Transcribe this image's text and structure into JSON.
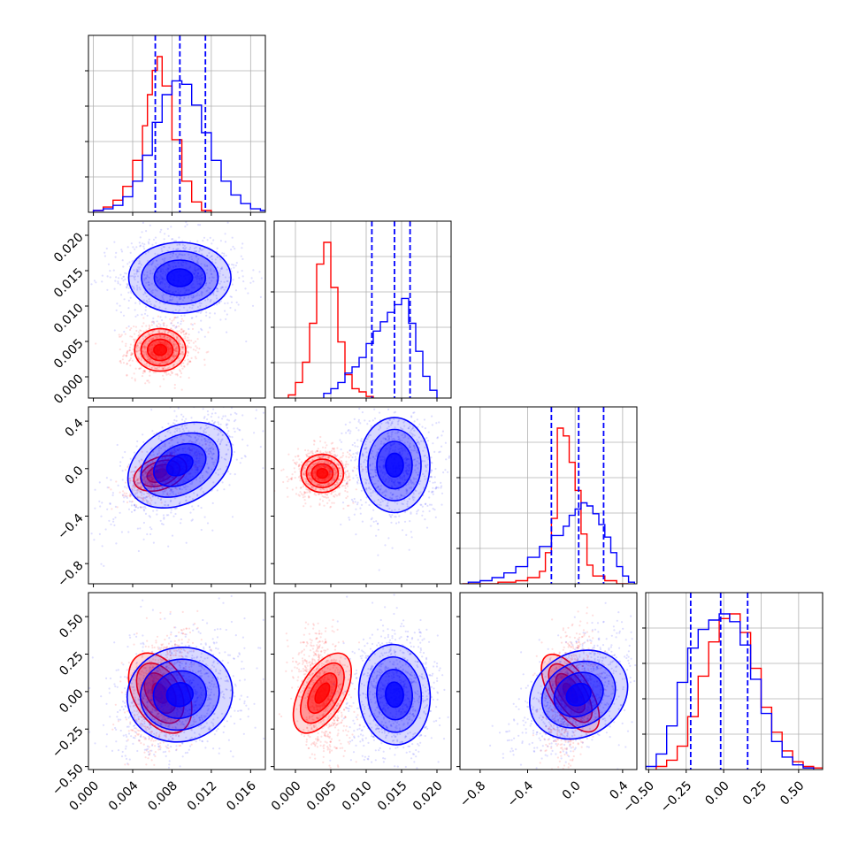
{
  "chart_data": {
    "type": "corner",
    "parameters": [
      {
        "id": "p0",
        "range": [
          -0.0005,
          0.0175
        ],
        "ticks": [
          0.0,
          0.004,
          0.008,
          0.012,
          0.016
        ],
        "tick_labels": [
          "0.000",
          "0.004",
          "0.008",
          "0.012",
          "0.016"
        ]
      },
      {
        "id": "p1",
        "range": [
          -0.003,
          0.022
        ],
        "ticks": [
          0.0,
          0.005,
          0.01,
          0.015,
          0.02
        ],
        "tick_labels": [
          "0.000",
          "0.005",
          "0.010",
          "0.015",
          "0.020"
        ]
      },
      {
        "id": "p2",
        "range": [
          -0.97,
          0.52
        ],
        "ticks": [
          -0.8,
          -0.4,
          0.0,
          0.4
        ],
        "tick_labels": [
          "−0.8",
          "−0.4",
          "0.0",
          "0.4"
        ]
      },
      {
        "id": "p3",
        "range": [
          -0.52,
          0.66
        ],
        "ticks": [
          -0.5,
          -0.25,
          0.0,
          0.25,
          0.5
        ],
        "tick_labels": [
          "−0.50",
          "−0.25",
          "0.00",
          "0.25",
          "0.50"
        ]
      }
    ],
    "grid": true,
    "series": [
      {
        "color": "#ff0000",
        "means": [
          0.0068,
          0.0038,
          -0.04,
          -0.01
        ],
        "sds": [
          0.0013,
          0.0015,
          0.08,
          0.16
        ],
        "correlations": [
          [
            0,
            2,
            0.5
          ],
          [
            0,
            3,
            0.3
          ],
          [
            1,
            3,
            -0.25
          ],
          [
            2,
            3,
            0.25
          ]
        ],
        "histograms": [
          {
            "bins": [
              [
                0.0,
                1
              ],
              [
                0.001,
                3
              ],
              [
                0.002,
                7
              ],
              [
                0.003,
                15
              ],
              [
                0.004,
                30
              ],
              [
                0.005,
                50
              ],
              [
                0.0055,
                68
              ],
              [
                0.006,
                82
              ],
              [
                0.0065,
                90
              ],
              [
                0.007,
                73
              ],
              [
                0.008,
                42
              ],
              [
                0.009,
                18
              ],
              [
                0.01,
                6
              ],
              [
                0.011,
                1
              ]
            ]
          },
          {
            "bins": [
              [
                -0.001,
                2
              ],
              [
                0.0,
                10
              ],
              [
                0.001,
                23
              ],
              [
                0.002,
                48
              ],
              [
                0.003,
                86
              ],
              [
                0.004,
                100
              ],
              [
                0.005,
                71
              ],
              [
                0.006,
                36
              ],
              [
                0.007,
                15
              ],
              [
                0.008,
                6
              ],
              [
                0.009,
                4
              ],
              [
                0.01,
                1
              ]
            ]
          },
          {
            "bins": [
              [
                -0.95,
                0
              ],
              [
                -0.65,
                1
              ],
              [
                -0.5,
                2
              ],
              [
                -0.4,
                4
              ],
              [
                -0.3,
                8
              ],
              [
                -0.25,
                20
              ],
              [
                -0.2,
                42
              ],
              [
                -0.15,
                100
              ],
              [
                -0.1,
                95
              ],
              [
                -0.05,
                78
              ],
              [
                0.0,
                60
              ],
              [
                0.05,
                32
              ],
              [
                0.1,
                12
              ],
              [
                0.15,
                5
              ],
              [
                0.25,
                2
              ],
              [
                0.35,
                0
              ]
            ]
          },
          {
            "bins": [
              [
                -0.45,
                2
              ],
              [
                -0.38,
                6
              ],
              [
                -0.31,
                15
              ],
              [
                -0.24,
                34
              ],
              [
                -0.17,
                60
              ],
              [
                -0.1,
                82
              ],
              [
                -0.03,
                97
              ],
              [
                0.04,
                100
              ],
              [
                0.11,
                88
              ],
              [
                0.18,
                65
              ],
              [
                0.25,
                40
              ],
              [
                0.32,
                24
              ],
              [
                0.39,
                12
              ],
              [
                0.46,
                5
              ],
              [
                0.53,
                2
              ],
              [
                0.6,
                1
              ]
            ]
          }
        ],
        "quantiles": []
      },
      {
        "color": "#0000ff",
        "means": [
          0.0088,
          0.014,
          0.03,
          -0.02
        ],
        "sds": [
          0.0026,
          0.0025,
          0.2,
          0.17
        ],
        "correlations": [
          [
            0,
            2,
            0.6
          ],
          [
            0,
            3,
            0.25
          ],
          [
            2,
            3,
            0.55
          ],
          [
            1,
            3,
            0.05
          ]
        ],
        "histograms": [
          {
            "bins": [
              [
                0.0,
                1
              ],
              [
                0.001,
                2
              ],
              [
                0.002,
                4
              ],
              [
                0.003,
                9
              ],
              [
                0.004,
                18
              ],
              [
                0.005,
                33
              ],
              [
                0.006,
                52
              ],
              [
                0.007,
                68
              ],
              [
                0.008,
                76
              ],
              [
                0.009,
                74
              ],
              [
                0.01,
                62
              ],
              [
                0.011,
                46
              ],
              [
                0.012,
                30
              ],
              [
                0.013,
                18
              ],
              [
                0.014,
                10
              ],
              [
                0.015,
                5
              ],
              [
                0.016,
                2
              ],
              [
                0.017,
                1
              ]
            ]
          },
          {
            "bins": [
              [
                0.004,
                3
              ],
              [
                0.005,
                6
              ],
              [
                0.006,
                10
              ],
              [
                0.007,
                16
              ],
              [
                0.008,
                20
              ],
              [
                0.009,
                26
              ],
              [
                0.01,
                35
              ],
              [
                0.011,
                43
              ],
              [
                0.012,
                49
              ],
              [
                0.013,
                55
              ],
              [
                0.014,
                60
              ],
              [
                0.015,
                64
              ],
              [
                0.016,
                48
              ],
              [
                0.017,
                30
              ],
              [
                0.018,
                14
              ],
              [
                0.019,
                5
              ]
            ]
          },
          {
            "bins": [
              [
                -0.9,
                1
              ],
              [
                -0.8,
                2
              ],
              [
                -0.7,
                4
              ],
              [
                -0.6,
                7
              ],
              [
                -0.5,
                11
              ],
              [
                -0.4,
                17
              ],
              [
                -0.3,
                24
              ],
              [
                -0.2,
                31
              ],
              [
                -0.1,
                37
              ],
              [
                -0.05,
                44
              ],
              [
                0.0,
                48
              ],
              [
                0.05,
                52
              ],
              [
                0.1,
                50
              ],
              [
                0.15,
                45
              ],
              [
                0.2,
                38
              ],
              [
                0.25,
                30
              ],
              [
                0.3,
                20
              ],
              [
                0.35,
                11
              ],
              [
                0.4,
                5
              ],
              [
                0.45,
                1
              ]
            ]
          },
          {
            "bins": [
              [
                -0.52,
                2
              ],
              [
                -0.45,
                10
              ],
              [
                -0.38,
                28
              ],
              [
                -0.31,
                56
              ],
              [
                -0.24,
                78
              ],
              [
                -0.17,
                90
              ],
              [
                -0.1,
                96
              ],
              [
                -0.03,
                100
              ],
              [
                0.04,
                95
              ],
              [
                0.11,
                80
              ],
              [
                0.18,
                58
              ],
              [
                0.25,
                36
              ],
              [
                0.32,
                18
              ],
              [
                0.39,
                8
              ],
              [
                0.46,
                3
              ],
              [
                0.53,
                1
              ]
            ]
          }
        ],
        "quantiles": [
          [
            0.0063,
            0.0088,
            0.0114
          ],
          [
            0.0108,
            0.014,
            0.0162
          ],
          [
            -0.2,
            0.03,
            0.24
          ],
          [
            -0.22,
            -0.02,
            0.16
          ]
        ]
      }
    ]
  }
}
